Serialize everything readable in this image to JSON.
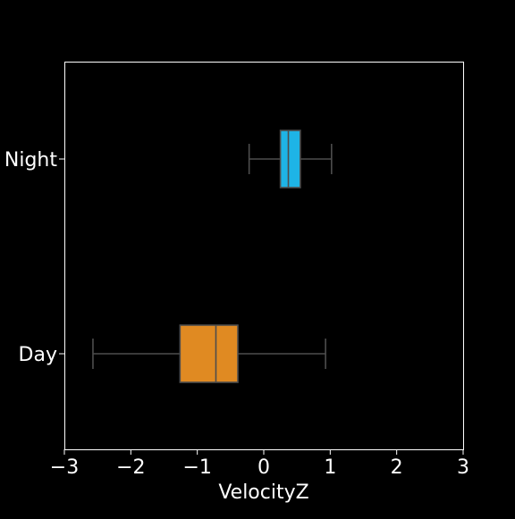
{
  "chart_data": {
    "type": "boxplot",
    "title": "",
    "xlabel": "VelocityZ",
    "ylabel": "",
    "xlim": [
      -3,
      3
    ],
    "x_ticks": [
      -3,
      -2,
      -1,
      0,
      1,
      2,
      3
    ],
    "x_tick_labels": [
      "−3",
      "−2",
      "−1",
      "0",
      "1",
      "2",
      "3"
    ],
    "orientation": "horizontal",
    "grid": false,
    "background": "#000000",
    "axis_color": "#ffffff",
    "whisker_color": "#4d4d4d",
    "categories": [
      "Night",
      "Day"
    ],
    "boxes": [
      {
        "category": "Night",
        "whisker_low": -0.22,
        "q1": 0.25,
        "median": 0.37,
        "q3": 0.55,
        "whisker_high": 1.02,
        "color": "#1eb4e6"
      },
      {
        "category": "Day",
        "whisker_low": -2.57,
        "q1": -1.26,
        "median": -0.72,
        "q3": -0.39,
        "whisker_high": 0.93,
        "color": "#e08a22"
      }
    ]
  }
}
